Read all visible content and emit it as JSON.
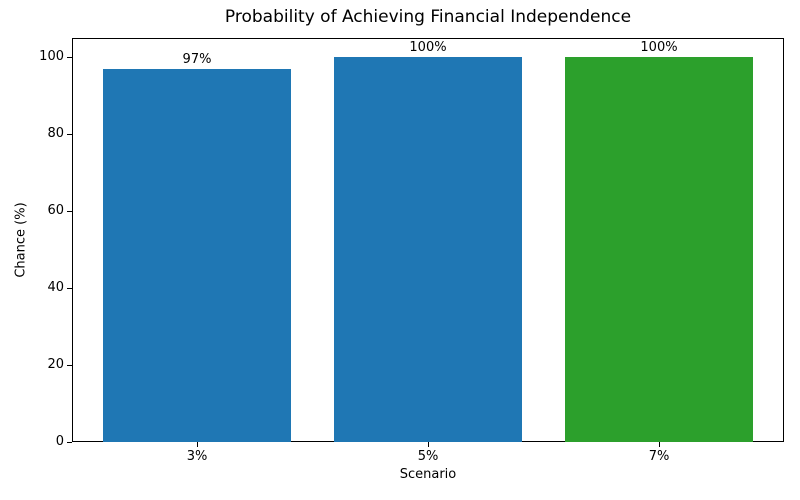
{
  "chart_data": {
    "type": "bar",
    "title": "Probability of Achieving Financial Independence",
    "xlabel": "Scenario",
    "ylabel": "Chance (%)",
    "categories": [
      "3%",
      "5%",
      "7%"
    ],
    "values": [
      97,
      100,
      100
    ],
    "value_labels": [
      "97%",
      "100%",
      "100%"
    ],
    "bar_colors": [
      "#1f77b4",
      "#1f77b4",
      "#2ca02c"
    ],
    "ylim": [
      0,
      105
    ],
    "yticks": [
      0,
      20,
      40,
      60,
      80,
      100
    ],
    "grid": false,
    "legend_position": "none",
    "background_color": "#ffffff",
    "axis_color": "#000000"
  }
}
